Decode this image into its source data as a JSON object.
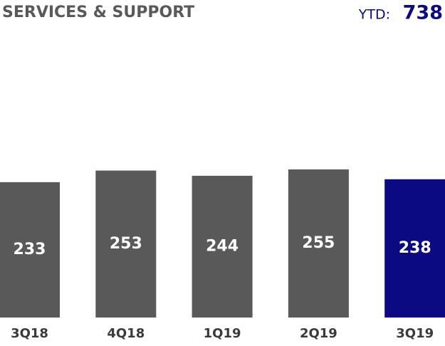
{
  "chart_data": {
    "type": "bar",
    "title": "SERVICES & SUPPORT",
    "summary_label": "YTD:",
    "summary_value": 738,
    "categories": [
      "3Q18",
      "4Q18",
      "1Q19",
      "2Q19",
      "3Q19"
    ],
    "values": [
      233,
      253,
      244,
      255,
      238
    ],
    "colors": [
      "#595959",
      "#595959",
      "#595959",
      "#595959",
      "#0b0a82"
    ]
  }
}
